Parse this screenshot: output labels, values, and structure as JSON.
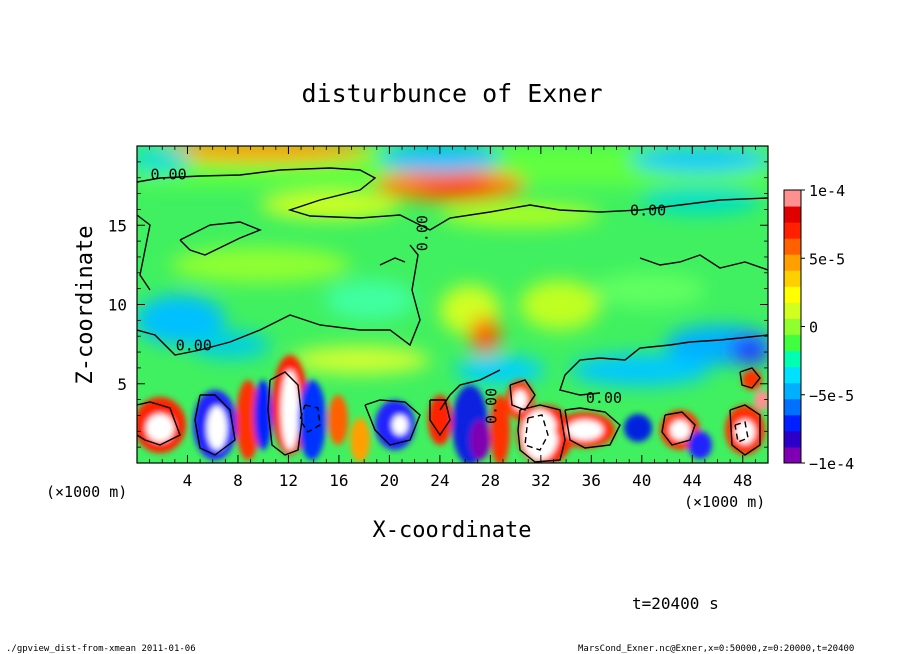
{
  "chart_data": {
    "type": "heatmap",
    "title": "disturbunce of Exner",
    "xlabel": "X-coordinate",
    "ylabel": "Z-coordinate",
    "x_unit_left": "(×1000 m)",
    "x_unit_right": "(×1000 m)",
    "xlim": [
      0,
      50
    ],
    "ylim": [
      0,
      20
    ],
    "x_ticks": [
      "4",
      "8",
      "12",
      "16",
      "20",
      "24",
      "28",
      "32",
      "36",
      "40",
      "44",
      "48"
    ],
    "x_tick_values": [
      4,
      8,
      12,
      16,
      20,
      24,
      28,
      32,
      36,
      40,
      44,
      48
    ],
    "y_ticks": [
      "5",
      "10",
      "15"
    ],
    "y_tick_values": [
      5,
      10,
      15
    ],
    "colorbar": {
      "range": [
        -0.0001,
        0.0001
      ],
      "labels": [
        "1e-4",
        "5e-5",
        "0",
        "−5e-5",
        "−1e-4"
      ],
      "label_values": [
        0.0001,
        5e-05,
        0,
        -5e-05,
        -0.0001
      ],
      "colors": [
        "#7f00b2",
        "#2c00c8",
        "#0020ff",
        "#0070ff",
        "#00b0ff",
        "#00e0ff",
        "#00ffb0",
        "#40ff40",
        "#90ff30",
        "#d0ff20",
        "#ffff00",
        "#ffd000",
        "#ffa000",
        "#ff6000",
        "#ff2000",
        "#e00000",
        "#ff9090"
      ]
    },
    "contour_labels": [
      {
        "text": "0.00",
        "x": 2.5,
        "z": 17.9
      },
      {
        "text": "0.00",
        "x": 40.5,
        "z": 15.6
      },
      {
        "text": "0.00",
        "x": 23.0,
        "z": 14.5
      },
      {
        "text": "0.00",
        "x": 4.5,
        "z": 7.1
      },
      {
        "text": "0.00",
        "x": 37.0,
        "z": 3.8
      },
      {
        "text": "0.00",
        "x": 28.5,
        "z": 3.6
      }
    ],
    "annotations": [
      "t=20400 s"
    ]
  },
  "footer": {
    "left": "./gpview_dist-from-xmean  2011-01-06",
    "right": "MarsCond_Exner.nc@Exner,x=0:50000,z=0:20000,t=20400"
  },
  "time_label": "t=20400 s"
}
